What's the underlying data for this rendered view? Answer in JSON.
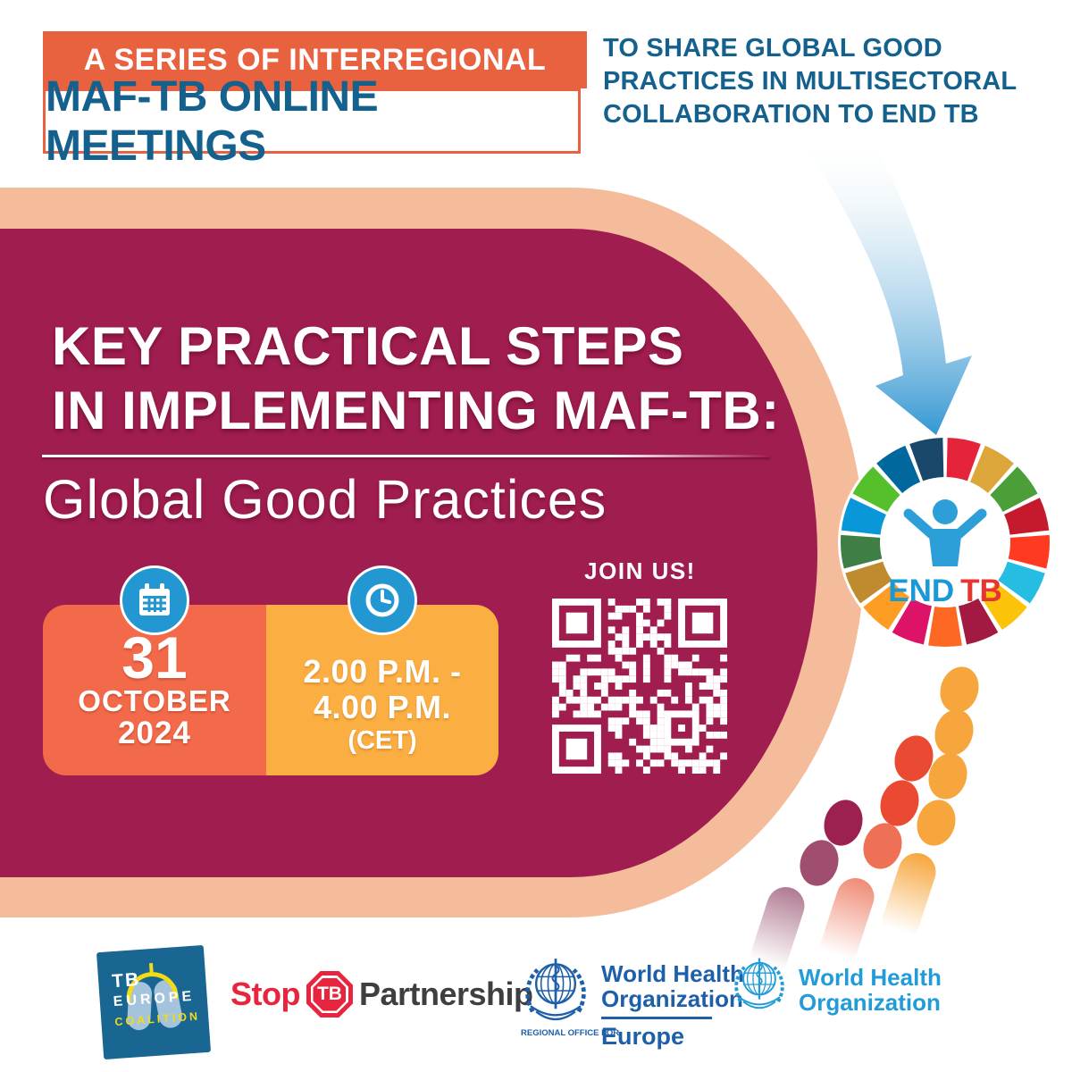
{
  "banner": {
    "series": "A SERIES OF INTERREGIONAL",
    "meetings": "MAF-TB ONLINE MEETINGS",
    "tagline": "TO SHARE GLOBAL GOOD PRACTICES IN MULTISECTORAL COLLABORATION TO END TB"
  },
  "hero": {
    "title_line1": "KEY PRACTICAL STEPS",
    "title_line2": "IN IMPLEMENTING MAF-TB:",
    "subtitle": "Global Good Practices"
  },
  "event": {
    "day": "31",
    "month": "OCTOBER",
    "year": "2024",
    "time_line1": "2.00 P.M. -",
    "time_line2": "4.00 P.M.",
    "timezone": "(CET)",
    "join": "JOIN US!"
  },
  "endtb": {
    "end": "END",
    "tb": "TB"
  },
  "logos": {
    "tb_europe": {
      "tb": "TB",
      "europe": "EUROPE",
      "coalition": "COALITION"
    },
    "stop_tb": {
      "stop": "Stop",
      "tb": "TB",
      "partnership": "Partnership"
    },
    "who_europe": {
      "line1": "World Health",
      "line2": "Organization",
      "office": "REGIONAL OFFICE FOR",
      "region": "Europe"
    },
    "who": {
      "line1": "World Health",
      "line2": "Organization"
    }
  },
  "colors": {
    "maroon": "#A01D4F",
    "peach": "#F5BC9C",
    "orange": "#E8623F",
    "date_orange": "#F26A4A",
    "time_yellow": "#FBAE42",
    "blue_text": "#15618E",
    "icon_blue": "#2397D2",
    "arrow_blue": "#2B93D1",
    "qr_white": "#FFFFFF",
    "endtb_figure": "#2D9FD8",
    "endtb_end": "#1A99D6",
    "endtb_tb": "#E73631",
    "who_europe_blue": "#1D5FA9",
    "who_blue": "#219CD8",
    "stop_red": "#E8253F",
    "partnership_gray": "#3F3F41",
    "tbec_blue": "#186691",
    "tbec_yellow": "#F3DC13",
    "tbec_lung": "#A4C3DD",
    "dot_orange": "#F6A63C",
    "dot_red": "#E94A31",
    "dot_red_light": "#EE7055",
    "dot_maroon": "#9D2150",
    "dot_mauve": "#A04E6F",
    "tail_orange": "#F6A63C",
    "tail_red": "#EF8B76",
    "tail_mauve": "#B07A92",
    "wheel": [
      "#E5243B",
      "#DDA63A",
      "#4C9F38",
      "#C5192D",
      "#FF3A21",
      "#26BDE2",
      "#FCC30B",
      "#A21942",
      "#FD6925",
      "#DD1367",
      "#FD9D24",
      "#BF8B2E",
      "#3F7E44",
      "#0A97D9",
      "#56C02B",
      "#00689D",
      "#19486A"
    ]
  }
}
